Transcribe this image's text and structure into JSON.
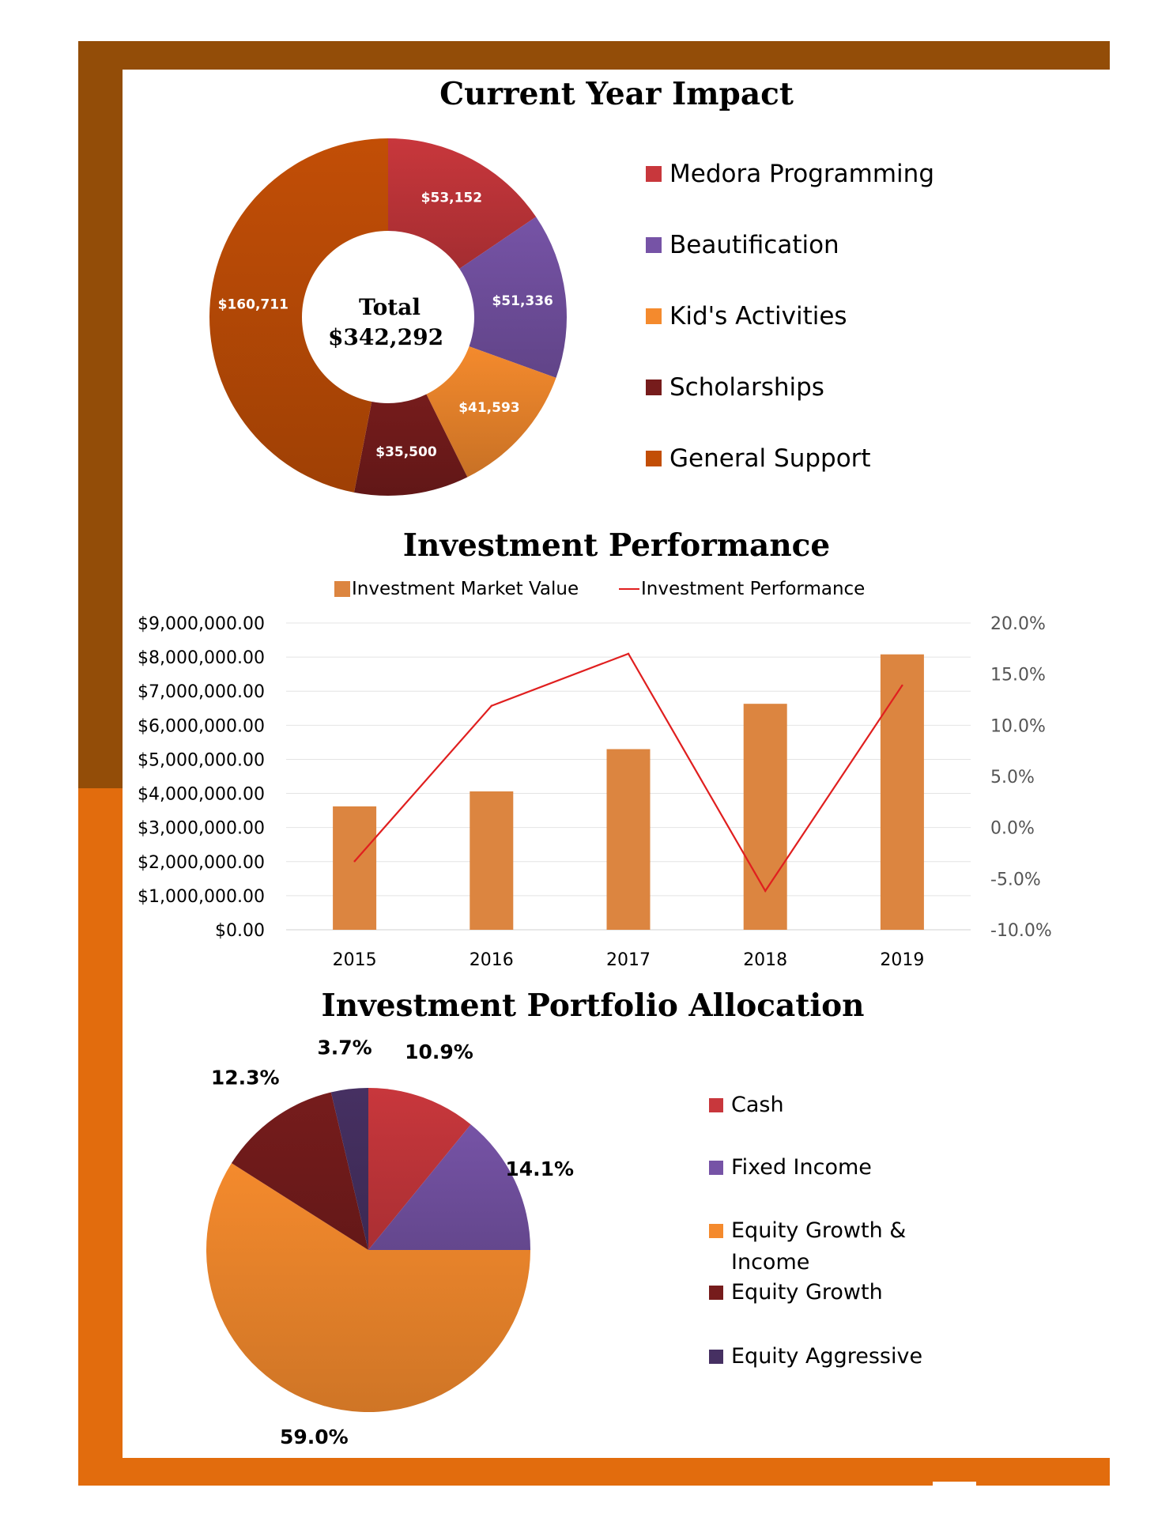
{
  "colors": {
    "frame_brown": "#934d08",
    "frame_orange": "#e26c0d",
    "medora_red": "#c8373c",
    "beautification_purple": "#7653a6",
    "kids_orange": "#f48a2d",
    "scholarships_maroon": "#761c1c",
    "general_rust": "#c24e06",
    "bar_orange": "#dc8540",
    "line_red": "#e01f1f",
    "equity_aggressive_navy": "#463062"
  },
  "chart_data": [
    {
      "type": "pie",
      "variant": "donut",
      "title": "Current Year Impact",
      "center_label": "Total",
      "center_value": "$342,292",
      "slices": [
        {
          "name": "Medora Programming",
          "value": 53152,
          "label": "$53,152",
          "color": "#c8373c"
        },
        {
          "name": "Beautification",
          "value": 51336,
          "label": "$51,336",
          "color": "#7653a6"
        },
        {
          "name": "Kid's Activities",
          "value": 41593,
          "label": "$41,593",
          "color": "#f48a2d"
        },
        {
          "name": "Scholarships",
          "value": 35500,
          "label": "$35,500",
          "color": "#761c1c"
        },
        {
          "name": "General Support",
          "value": 160711,
          "label": "$160,711",
          "color": "#c24e06"
        }
      ],
      "legend_position": "right"
    },
    {
      "type": "bar",
      "title": "Investment Performance",
      "categories": [
        "2015",
        "2016",
        "2017",
        "2018",
        "2019"
      ],
      "series": [
        {
          "name": "Investment Market Value",
          "kind": "bar",
          "axis": "left",
          "values": [
            3620000,
            4060000,
            5300000,
            6630000,
            8080000
          ],
          "color": "#dc8540"
        },
        {
          "name": "Investment Performance",
          "kind": "line",
          "axis": "right",
          "values": [
            -3.3,
            11.9,
            17.0,
            -6.2,
            13.9
          ],
          "color": "#e01f1f"
        }
      ],
      "ylim_left": [
        0,
        9000000
      ],
      "yticks_left": [
        "$0.00",
        "$1,000,000.00",
        "$2,000,000.00",
        "$3,000,000.00",
        "$4,000,000.00",
        "$5,000,000.00",
        "$6,000,000.00",
        "$7,000,000.00",
        "$8,000,000.00",
        "$9,000,000.00"
      ],
      "ylim_right": [
        -10,
        20
      ],
      "yticks_right": [
        "-10.0%",
        "-5.0%",
        "0.0%",
        "5.0%",
        "10.0%",
        "15.0%",
        "20.0%"
      ],
      "grid": true,
      "legend_position": "top"
    },
    {
      "type": "pie",
      "title": "Investment Portfolio Allocation",
      "slices": [
        {
          "name": "Cash",
          "value": 10.9,
          "label": "10.9%",
          "color": "#c8373c"
        },
        {
          "name": "Fixed Income",
          "value": 14.1,
          "label": "14.1%",
          "color": "#7653a6"
        },
        {
          "name": "Equity Growth & Income",
          "value": 59.0,
          "label": "59.0%",
          "color": "#f48a2d"
        },
        {
          "name": "Equity Growth",
          "value": 12.3,
          "label": "12.3%",
          "color": "#761c1c"
        },
        {
          "name": "Equity Aggressive",
          "value": 3.7,
          "label": "3.7%",
          "color": "#463062"
        }
      ],
      "legend_position": "right"
    }
  ]
}
